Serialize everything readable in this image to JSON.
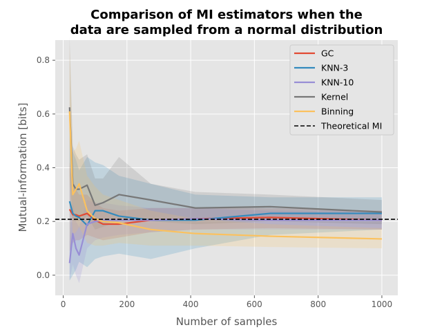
{
  "chart_data": {
    "type": "line",
    "title": [
      "Comparison of MI estimators when the",
      "data are sampled from a normal distribution"
    ],
    "xlabel": "Number of samples",
    "ylabel": "Mutual-information [bits]",
    "xlim": [
      -25,
      1050
    ],
    "ylim": [
      -0.075,
      0.875
    ],
    "xticks": [
      0,
      200,
      400,
      600,
      800,
      1000
    ],
    "yticks": [
      0.0,
      0.2,
      0.4,
      0.6,
      0.8
    ],
    "grid": true,
    "legend_position": "upper right",
    "background": "#e5e5e5",
    "x": [
      20,
      30,
      40,
      50,
      75,
      100,
      125,
      175,
      275,
      415,
      650,
      1000
    ],
    "series": [
      {
        "name": "GC",
        "color": "#e24a33",
        "values": [
          0.245,
          0.225,
          0.225,
          0.22,
          0.23,
          0.205,
          0.19,
          0.19,
          0.205,
          0.21,
          0.215,
          0.205
        ],
        "lower": [
          0.09,
          0.12,
          0.13,
          0.13,
          0.15,
          0.14,
          0.13,
          0.14,
          0.16,
          0.17,
          0.175,
          0.17
        ],
        "upper": [
          0.42,
          0.33,
          0.32,
          0.3,
          0.3,
          0.27,
          0.25,
          0.24,
          0.25,
          0.25,
          0.25,
          0.24
        ]
      },
      {
        "name": "KNN-3",
        "color": "#348abd",
        "values": [
          0.275,
          0.23,
          0.22,
          0.215,
          0.185,
          0.24,
          0.24,
          0.22,
          0.205,
          0.205,
          0.23,
          0.23
        ],
        "lower": [
          -0.02,
          0.0,
          0.02,
          0.05,
          0.03,
          0.06,
          0.07,
          0.08,
          0.06,
          0.1,
          0.15,
          0.17
        ],
        "upper": [
          0.55,
          0.46,
          0.43,
          0.39,
          0.44,
          0.42,
          0.41,
          0.37,
          0.34,
          0.3,
          0.29,
          0.29
        ]
      },
      {
        "name": "KNN-10",
        "color": "#988ed5",
        "values": [
          0.045,
          0.155,
          0.1,
          0.075,
          0.19,
          0.2,
          0.205,
          0.205,
          0.205,
          0.21,
          0.205,
          0.205
        ],
        "lower": [
          -0.02,
          0.04,
          0.0,
          -0.03,
          0.1,
          0.13,
          0.14,
          0.15,
          0.16,
          0.17,
          0.17,
          0.17
        ],
        "upper": [
          0.12,
          0.27,
          0.2,
          0.18,
          0.28,
          0.27,
          0.27,
          0.26,
          0.25,
          0.25,
          0.24,
          0.24
        ]
      },
      {
        "name": "Kernel",
        "color": "#777777",
        "values": [
          0.625,
          0.34,
          0.32,
          0.32,
          0.335,
          0.26,
          0.27,
          0.3,
          0.28,
          0.25,
          0.255,
          0.235
        ],
        "lower": [
          0.37,
          0.2,
          0.2,
          0.2,
          0.22,
          0.17,
          0.18,
          0.2,
          0.2,
          0.19,
          0.2,
          0.19
        ],
        "upper": [
          0.89,
          0.48,
          0.45,
          0.43,
          0.45,
          0.36,
          0.36,
          0.44,
          0.34,
          0.31,
          0.3,
          0.28
        ]
      },
      {
        "name": "Binning",
        "color": "#fbc15e",
        "values": [
          0.61,
          0.3,
          0.32,
          0.34,
          0.24,
          0.21,
          0.2,
          0.195,
          0.17,
          0.155,
          0.145,
          0.135
        ],
        "lower": [
          0.36,
          0.15,
          0.16,
          0.18,
          0.12,
          0.11,
          0.11,
          0.12,
          0.11,
          0.11,
          0.105,
          0.1
        ],
        "upper": [
          0.86,
          0.46,
          0.47,
          0.5,
          0.37,
          0.33,
          0.3,
          0.28,
          0.24,
          0.21,
          0.19,
          0.175
        ]
      }
    ],
    "reference_line": {
      "name": "Theoretical MI",
      "y": 0.208,
      "color": "#000000",
      "style": "dashed"
    }
  }
}
